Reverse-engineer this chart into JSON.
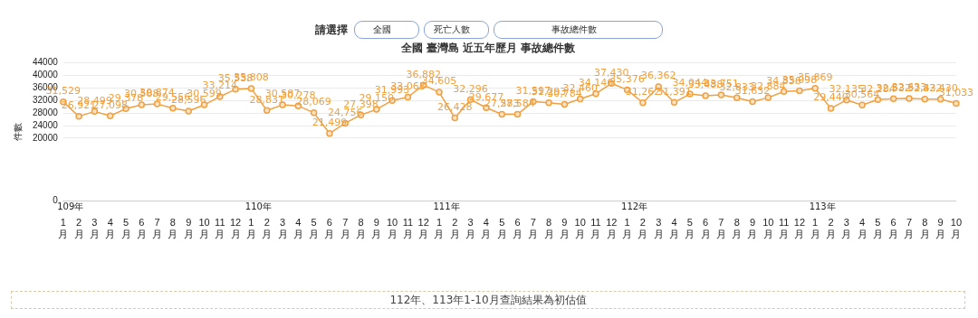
{
  "chart_data": {
    "type": "line",
    "title": "全國 臺灣島 近五年歷月 事故總件數",
    "ylabel": "件數",
    "categories": [
      "1月",
      "2月",
      "3月",
      "4月",
      "5月",
      "6月",
      "7月",
      "8月",
      "9月",
      "10月",
      "11月",
      "12月",
      "1月",
      "2月",
      "3月",
      "4月",
      "5月",
      "6月",
      "7月",
      "8月",
      "9月",
      "10月",
      "11月",
      "12月",
      "1月",
      "2月",
      "3月",
      "4月",
      "5月",
      "6月",
      "7月",
      "8月",
      "9月",
      "10月",
      "11月",
      "12月",
      "1月",
      "2月",
      "3月",
      "4月",
      "5月",
      "6月",
      "7月",
      "8月",
      "9月",
      "10月",
      "11月",
      "12月",
      "1月",
      "2月",
      "3月",
      "4月",
      "5月",
      "6月",
      "7月",
      "8月",
      "9月",
      "10月"
    ],
    "series": [
      {
        "color": "#f0a040",
        "values": [
          31529,
          26921,
          28499,
          27098,
          29378,
          30588,
          30874,
          29556,
          28596,
          30599,
          33214,
          35538,
          35808,
          28831,
          30587,
          30278,
          28069,
          21499,
          24756,
          27398,
          29150,
          31993,
          33063,
          36882,
          34605,
          26428,
          32296,
          29677,
          27583,
          27584,
          31597,
          31293,
          30784,
          32460,
          34146,
          37430,
          35376,
          31262,
          36362,
          31391,
          34044,
          33488,
          33751,
          32833,
          31632,
          32884,
          34836,
          35098,
          35869,
          29440,
          32135,
          30564,
          32284,
          32532,
          32633,
          32432,
          32430,
          31033
        ]
      }
    ],
    "value_labels": [
      "31,529",
      "26,921",
      "28,499",
      "27,098",
      "29,378",
      "30,588",
      "30,874",
      "29,556",
      "28,596",
      "30,599",
      "33,214",
      "35,538",
      "35,808",
      "28,831",
      "30,587",
      "30,278",
      "28,069",
      "21,499",
      "24,756",
      "27,398",
      "29,150",
      "31,993",
      "33,063",
      "36,882",
      "34,605",
      "26,428",
      "32,296",
      "29,677",
      "27,583",
      "27,584",
      "31,597",
      "31,293",
      "30,784",
      "32,460",
      "34,146",
      "37,430",
      "35,376",
      "31,262",
      "36,362",
      "31,391",
      "34,044",
      "33,488",
      "33,751",
      "32,833",
      "31,632",
      "32,884",
      "34,836",
      "35,098",
      "35,869",
      "29,440",
      "32,135",
      "30,564",
      "32,284",
      "32,532",
      "32,633",
      "32,432",
      "32,430",
      "31,033"
    ],
    "ylim": [
      0,
      44000
    ],
    "yticks": [
      0,
      20000,
      24000,
      28000,
      32000,
      36000,
      40000,
      44000
    ],
    "grid": "y",
    "marker": "circle",
    "line_style": "solid",
    "annotations": [
      "請選擇",
      "全國",
      "死亡人數",
      "事故總件數",
      "109年",
      "110年",
      "111年",
      "112年",
      "113年",
      "112年、113年1-10月查詢結果為初估值"
    ]
  }
}
